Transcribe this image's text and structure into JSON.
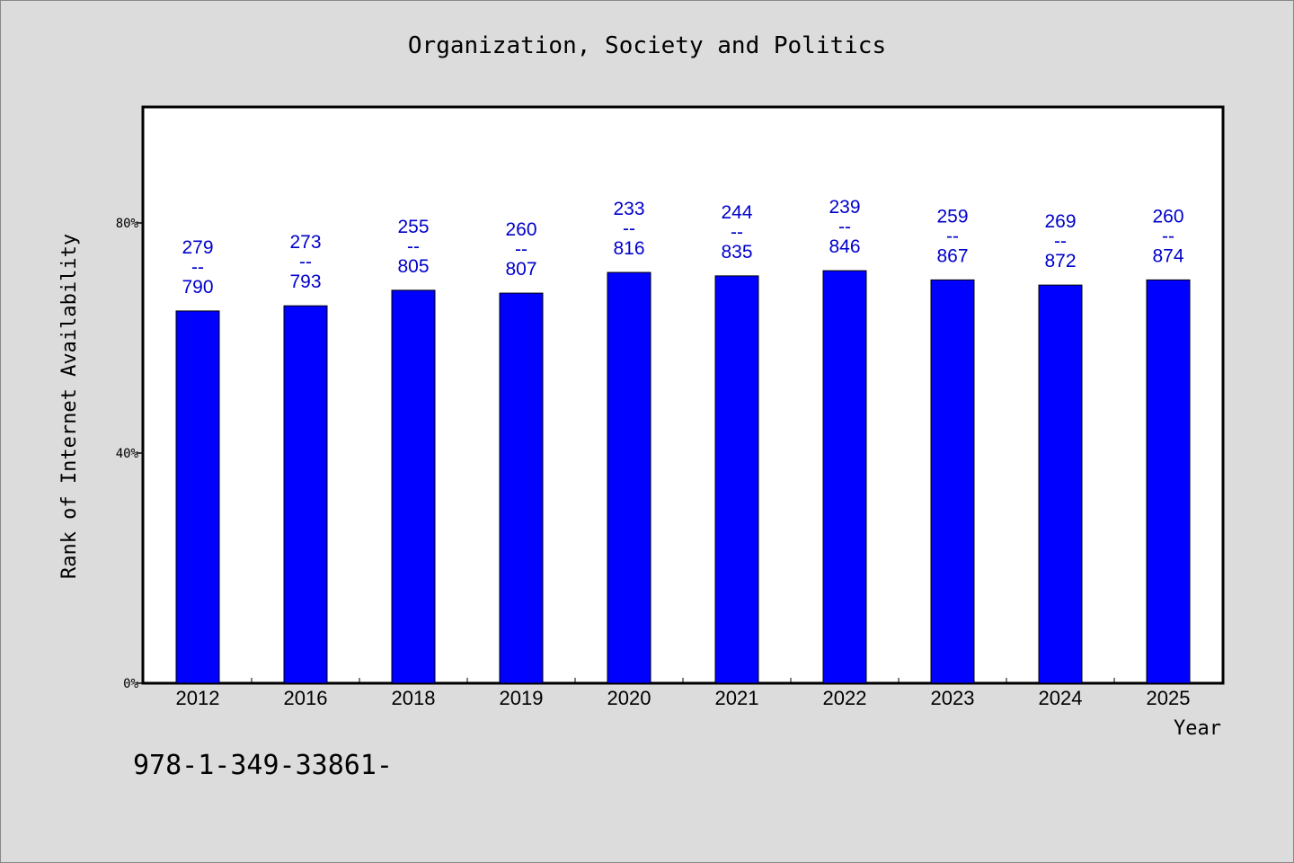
{
  "chart_data": {
    "type": "bar",
    "title": "Organization, Society and Politics",
    "xlabel": "Year",
    "ylabel": "Rank of Internet Availability",
    "ylim": [
      0,
      1
    ],
    "yticks": [
      {
        "value": 0,
        "label": "0%"
      },
      {
        "value": 0.4,
        "label": "40%"
      },
      {
        "value": 0.8,
        "label": "80%"
      }
    ],
    "categories": [
      "2012",
      "2016",
      "2018",
      "2019",
      "2020",
      "2021",
      "2022",
      "2023",
      "2024",
      "2025"
    ],
    "values": [
      0.647,
      0.656,
      0.683,
      0.678,
      0.714,
      0.708,
      0.717,
      0.701,
      0.692,
      0.701
    ],
    "data_labels": [
      {
        "top": "279",
        "sep": "--",
        "bottom": "790"
      },
      {
        "top": "273",
        "sep": "--",
        "bottom": "793"
      },
      {
        "top": "255",
        "sep": "--",
        "bottom": "805"
      },
      {
        "top": "260",
        "sep": "--",
        "bottom": "807"
      },
      {
        "top": "233",
        "sep": "--",
        "bottom": "816"
      },
      {
        "top": "244",
        "sep": "--",
        "bottom": "835"
      },
      {
        "top": "239",
        "sep": "--",
        "bottom": "846"
      },
      {
        "top": "259",
        "sep": "--",
        "bottom": "867"
      },
      {
        "top": "269",
        "sep": "--",
        "bottom": "872"
      },
      {
        "top": "260",
        "sep": "--",
        "bottom": "874"
      }
    ],
    "bar_color": "#0000ff",
    "label_color": "#0000cc",
    "grid": false,
    "legend": "none"
  },
  "footer": {
    "isbn": "978-1-349-33861-"
  }
}
